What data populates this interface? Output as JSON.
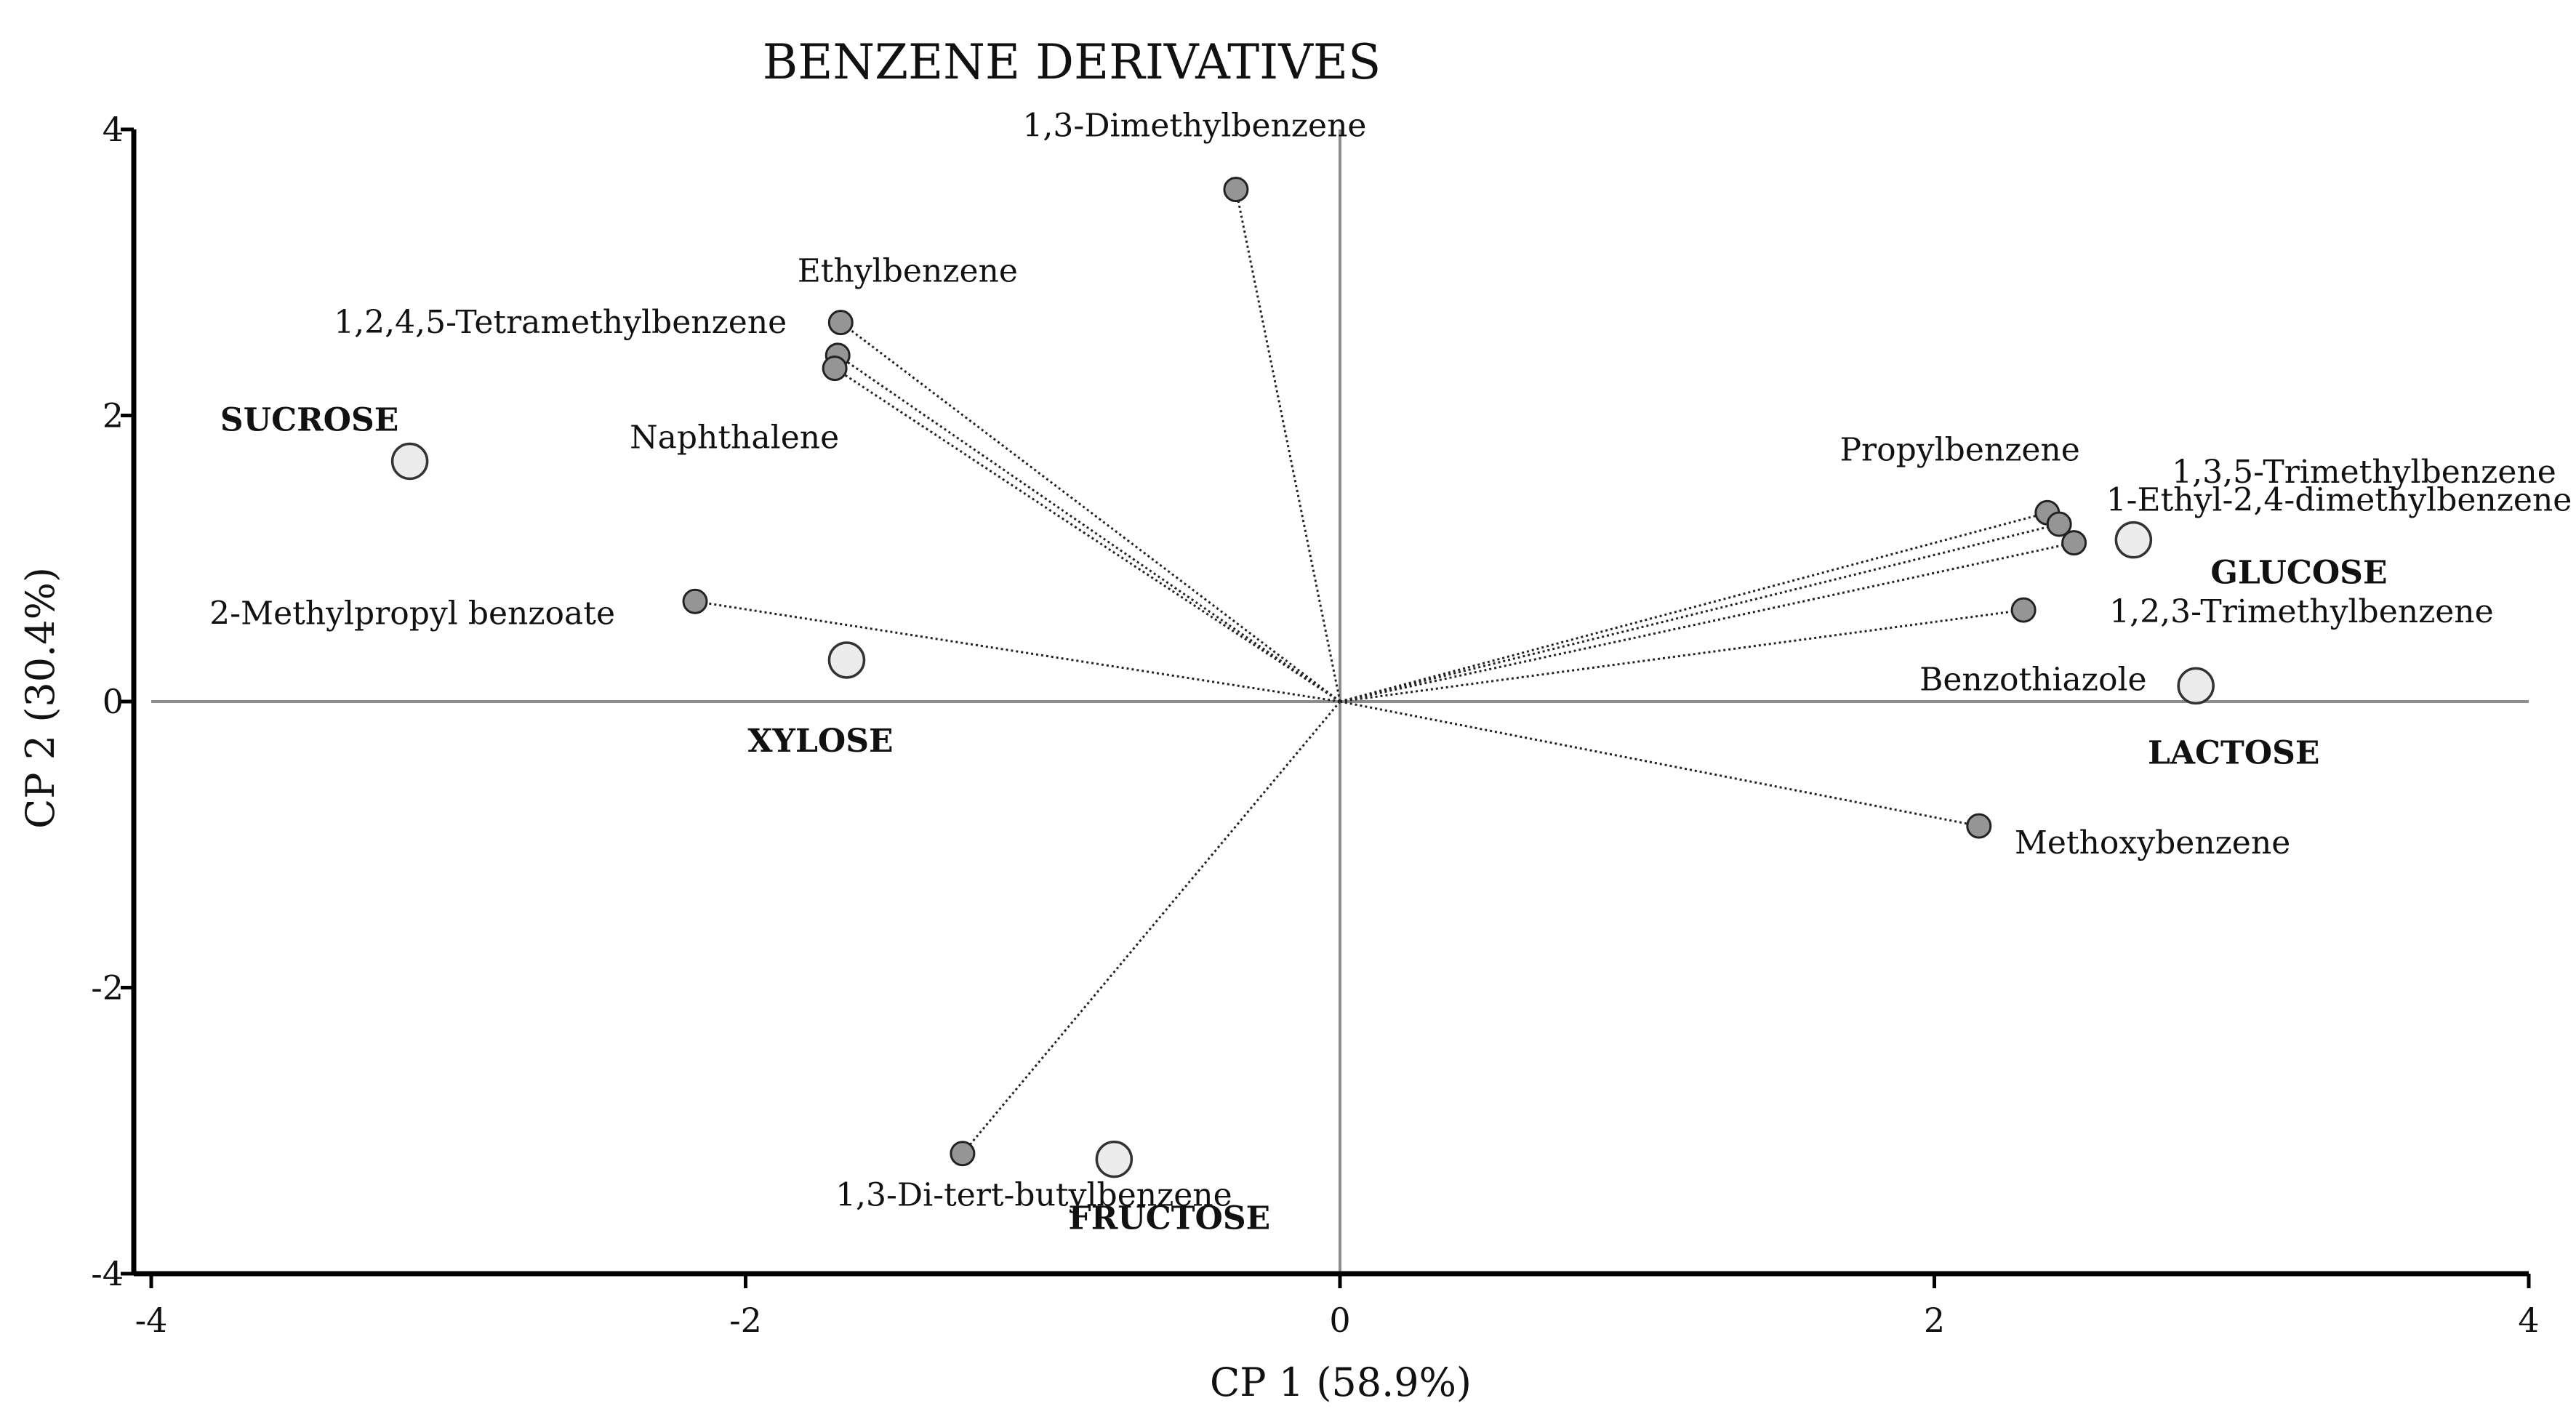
{
  "chart_data": {
    "type": "scatter",
    "title": "BENZENE DERIVATIVES",
    "xlabel": "CP 1 (58.9%)",
    "ylabel": "CP 2 (30.4%)",
    "xlim": [
      -4,
      4
    ],
    "ylim": [
      -4,
      4
    ],
    "xticks": [
      "-4",
      "-2",
      "0",
      "2",
      "4"
    ],
    "yticks": [
      "4",
      "2",
      "0",
      "-2",
      "-4"
    ],
    "grid": false,
    "variables": [
      {
        "name": "1,3-Dimethylbenzene",
        "x": -0.35,
        "y": 3.58
      },
      {
        "name": "Ethylbenzene",
        "x": -1.68,
        "y": 2.65
      },
      {
        "name": "1,2,4,5-Tetramethylbenzene",
        "x": -1.69,
        "y": 2.42
      },
      {
        "name": "Naphthalene",
        "x": -1.7,
        "y": 2.33
      },
      {
        "name": "2-Methylpropyl benzoate",
        "x": -2.17,
        "y": 0.7
      },
      {
        "name": "Propylbenzene",
        "x": 2.38,
        "y": 1.32
      },
      {
        "name": "1,3,5-Trimethylbenzene",
        "x": 2.42,
        "y": 1.24
      },
      {
        "name": "1-Ethyl-2,4-dimethylbenzene",
        "x": 2.47,
        "y": 1.11
      },
      {
        "name": "1,2,3-Trimethylbenzene",
        "x": 2.3,
        "y": 0.64
      },
      {
        "name": "Methoxybenzene",
        "x": 2.15,
        "y": -0.87
      },
      {
        "name": "1,3-Di-tert-butylbenzene",
        "x": -1.27,
        "y": -3.16
      }
    ],
    "samples": [
      {
        "name": "SUCROSE",
        "x": -3.13,
        "y": 1.68
      },
      {
        "name": "XYLOSE",
        "x": -1.66,
        "y": 0.29
      },
      {
        "name": "GLUCOSE",
        "x": 2.67,
        "y": 1.13
      },
      {
        "name": "LACTOSE",
        "x": 2.88,
        "y": 0.11
      },
      {
        "name": "FRUCTOSE",
        "x": -0.76,
        "y": -3.2
      }
    ],
    "annotations": [
      "Benzothiazole"
    ]
  }
}
